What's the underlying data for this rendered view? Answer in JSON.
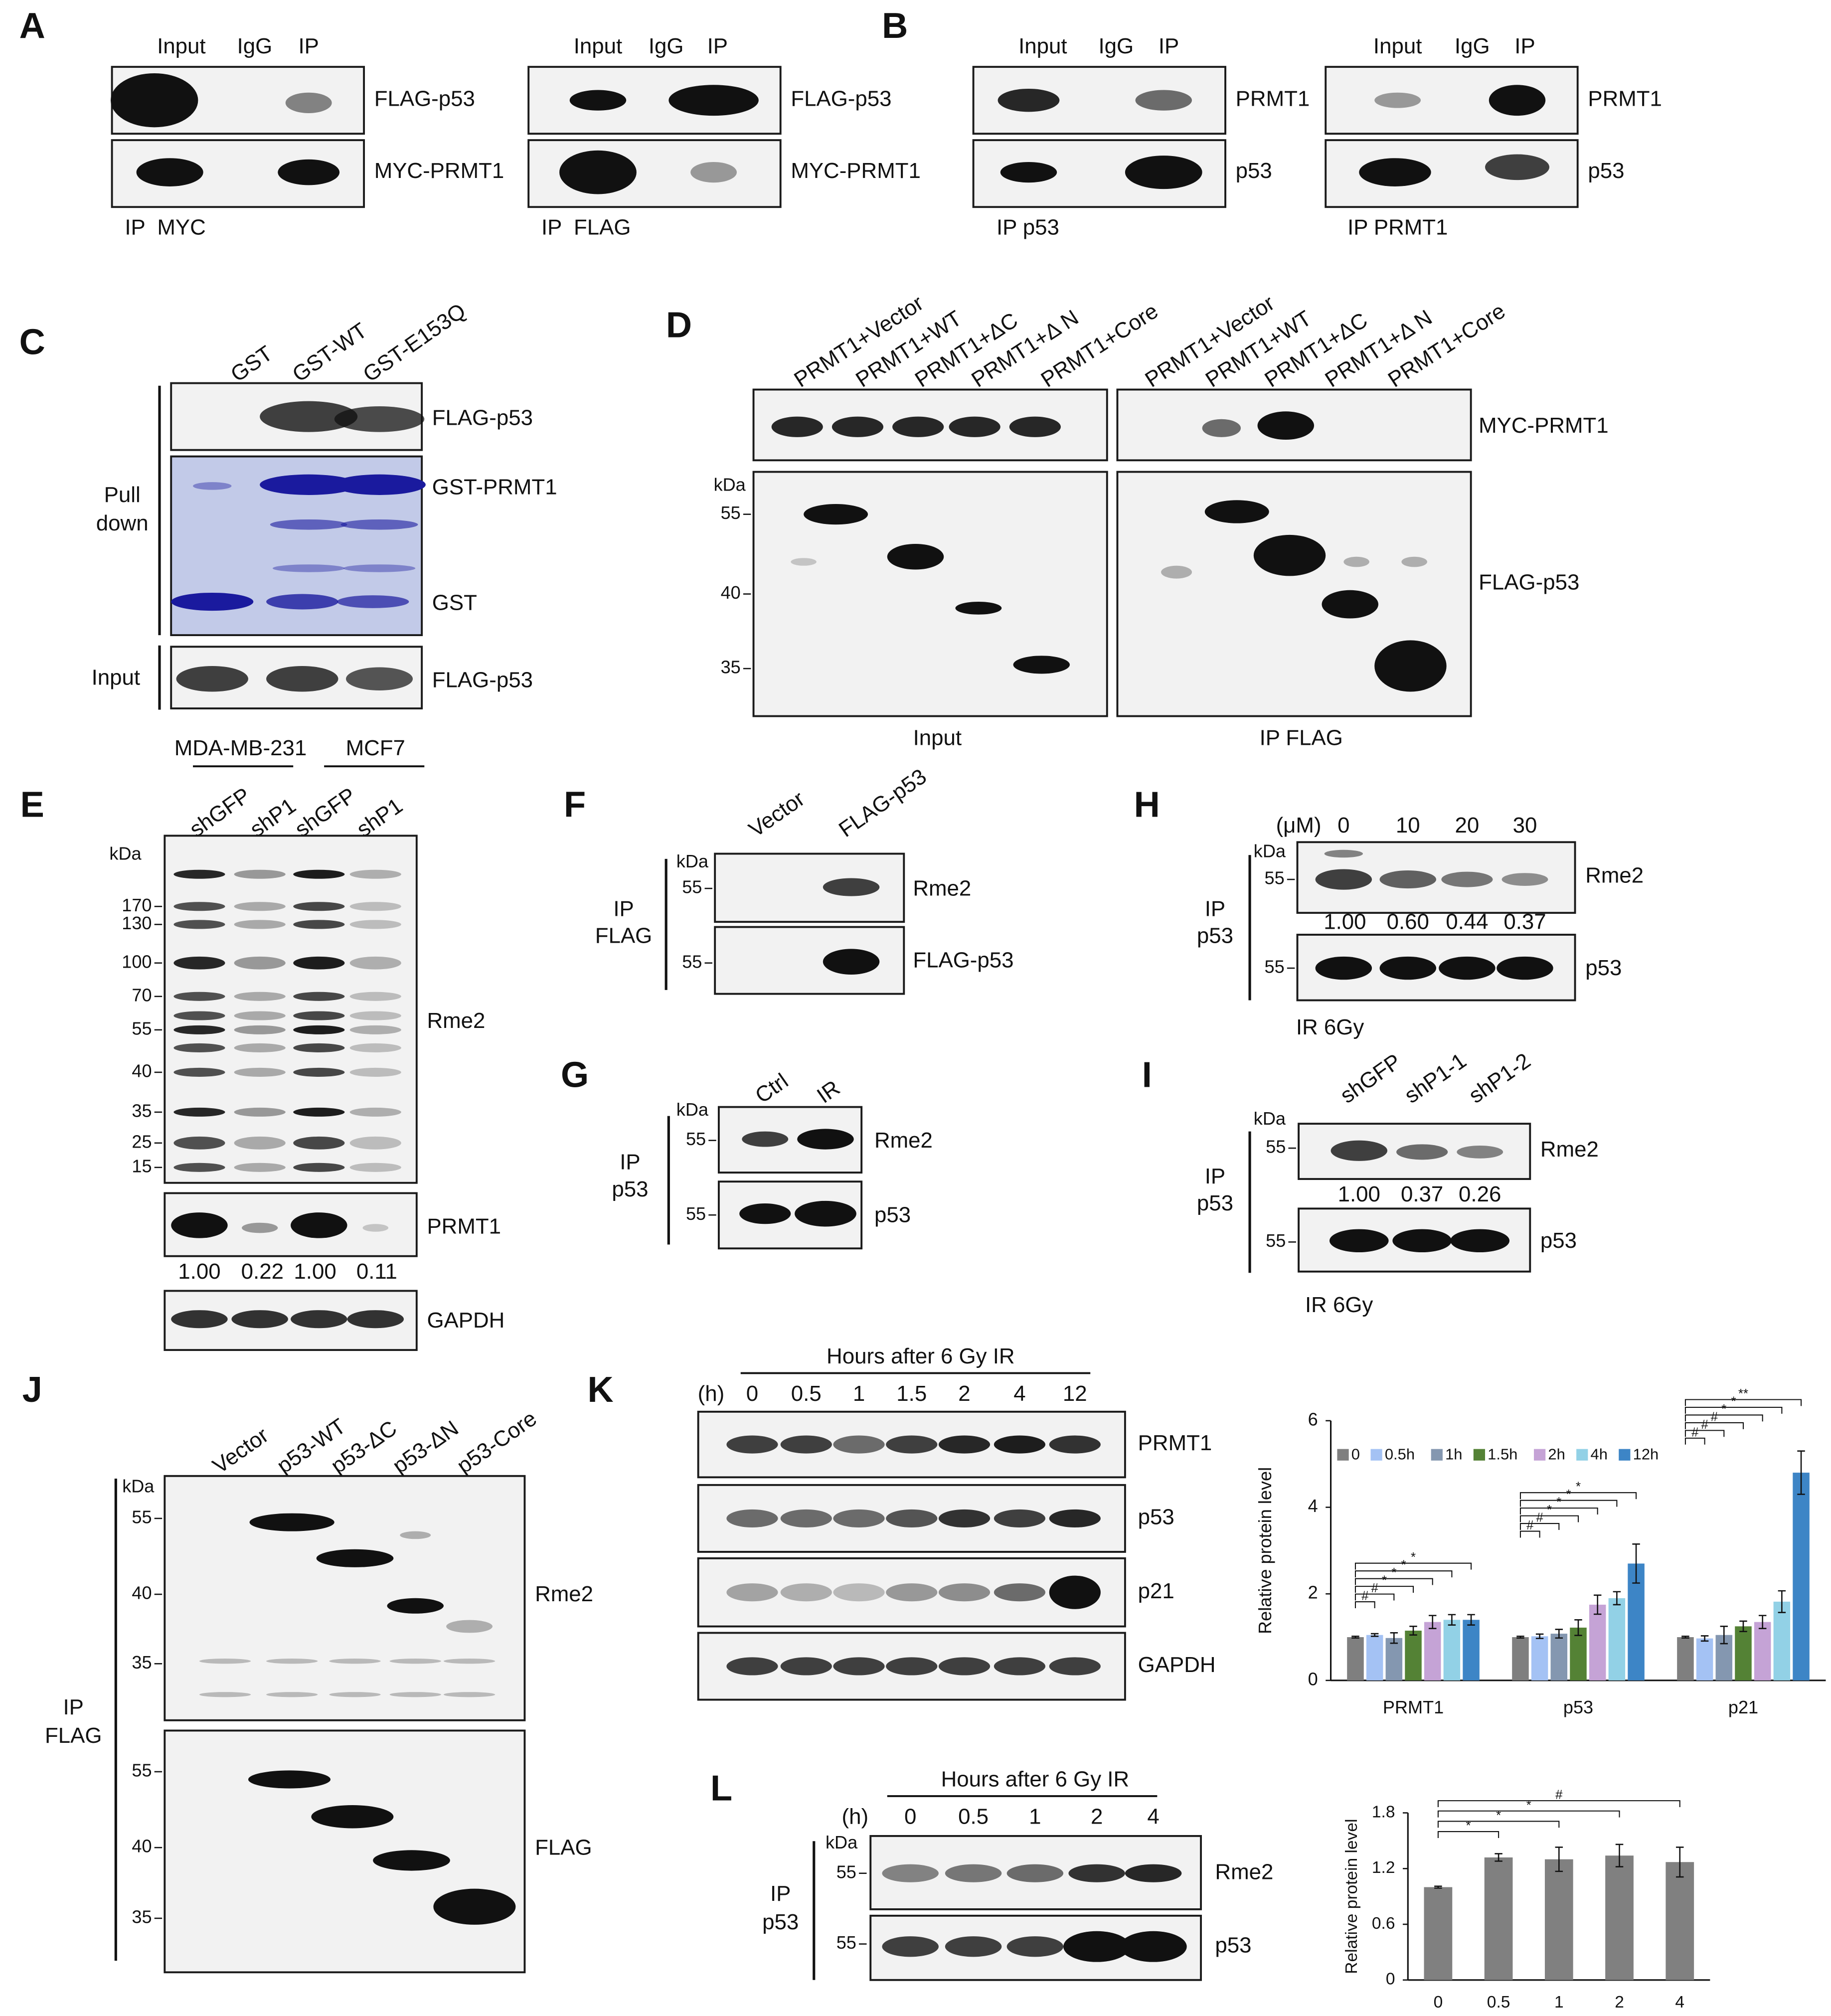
{
  "A": {
    "label": "A",
    "myc": {
      "columns": [
        "Input",
        "IgG",
        "IP"
      ],
      "rows": [
        "FLAG-p53",
        "MYC-PRMT1"
      ],
      "ip": "IP  MYC"
    },
    "flag": {
      "columns": [
        "Input",
        "IgG",
        "IP"
      ],
      "rows": [
        "FLAG-p53",
        "MYC-PRMT1"
      ],
      "ip": "IP  FLAG"
    }
  },
  "B": {
    "label": "B",
    "p53": {
      "columns": [
        "Input",
        "IgG",
        "IP"
      ],
      "rows": [
        "PRMT1",
        "p53"
      ],
      "ip": "IP p53"
    },
    "prmt1": {
      "columns": [
        "Input",
        "IgG",
        "IP"
      ],
      "rows": [
        "PRMT1",
        "p53"
      ],
      "ip": "IP PRMT1"
    }
  },
  "C": {
    "label": "C",
    "lanes": [
      "GST",
      "GST-WT",
      "GST-E153Q"
    ],
    "rows": [
      "FLAG-p53",
      "GST-PRMT1",
      "GST",
      "FLAG-p53"
    ],
    "pull_down": [
      "Pull",
      "down"
    ],
    "input": "Input"
  },
  "D": {
    "label": "D",
    "lanes": [
      "PRMT1+Vector",
      "PRMT1+WT",
      "PRMT1+ΔC",
      "PRMT1+Δ N",
      "PRMT1+Core"
    ],
    "rows": [
      "MYC-PRMT1",
      "FLAG-p53"
    ],
    "kda": "kDa",
    "markers": [
      "55",
      "40",
      "35"
    ],
    "sections": [
      "Input",
      "IP FLAG"
    ]
  },
  "E": {
    "label": "E",
    "cells": [
      "MDA-MB-231",
      "MCF7"
    ],
    "lanes": [
      "shGFP",
      "shP1",
      "shGFP",
      "shP1"
    ],
    "kda": "kDa",
    "markers": [
      "170",
      "130",
      "100",
      "70",
      "55",
      "40",
      "35",
      "25",
      "15"
    ],
    "rows": [
      "Rme2",
      "PRMT1",
      "GAPDH"
    ],
    "quant": [
      "1.00",
      "0.22",
      "1.00",
      "0.11"
    ]
  },
  "F": {
    "label": "F",
    "lanes": [
      "Vector",
      "FLAG-p53"
    ],
    "kda": "kDa",
    "markers": [
      "55",
      "55"
    ],
    "rows": [
      "Rme2",
      "FLAG-p53"
    ],
    "ip": [
      "IP",
      "FLAG"
    ]
  },
  "G": {
    "label": "G",
    "lanes": [
      "Ctrl",
      "IR"
    ],
    "kda": "kDa",
    "markers": [
      "55",
      "55"
    ],
    "rows": [
      "Rme2",
      "p53"
    ],
    "ip": [
      "IP",
      "p53"
    ]
  },
  "H": {
    "label": "H",
    "unit": "(μM)",
    "doses": [
      "0",
      "10",
      "20",
      "30"
    ],
    "kda": "kDa",
    "markers": [
      "55",
      "55"
    ],
    "rows": [
      "Rme2",
      "p53"
    ],
    "quant": [
      "1.00",
      "0.60",
      "0.44",
      "0.37"
    ],
    "ip": [
      "IP",
      "p53"
    ],
    "note": "IR 6Gy"
  },
  "I": {
    "label": "I",
    "lanes": [
      "shGFP",
      "shP1-1",
      "shP1-2"
    ],
    "kda": "kDa",
    "markers": [
      "55",
      "55"
    ],
    "rows": [
      "Rme2",
      "p53"
    ],
    "quant": [
      "1.00",
      "0.37",
      "0.26"
    ],
    "ip": [
      "IP",
      "p53"
    ],
    "note": "IR 6Gy"
  },
  "J": {
    "label": "J",
    "lanes": [
      "Vector",
      "p53-WT",
      "p53-ΔC",
      "p53-ΔN",
      "p53-Core"
    ],
    "kda": "kDa",
    "markers": [
      "55",
      "40",
      "35",
      "55",
      "40",
      "35"
    ],
    "rows": [
      "Rme2",
      "FLAG"
    ],
    "ip": [
      "IP",
      "FLAG"
    ]
  },
  "K": {
    "label": "K",
    "header": "Hours after 6 Gy IR",
    "unit": "(h)",
    "times": [
      "0",
      "0.5",
      "1",
      "1.5",
      "2",
      "4",
      "12"
    ],
    "rows": [
      "PRMT1",
      "p53",
      "p21",
      "GAPDH"
    ]
  },
  "L": {
    "label": "L",
    "header": "Hours after 6 Gy IR",
    "unit": "(h)",
    "times": [
      "0",
      "0.5",
      "1",
      "2",
      "4"
    ],
    "kda": "kDa",
    "markers": [
      "55",
      "55"
    ],
    "rows": [
      "Rme2",
      "p53"
    ],
    "ip": [
      "IP",
      "p53"
    ]
  },
  "chart_data": [
    {
      "type": "bar",
      "ylabel": "Relative protein level",
      "categories": [
        "PRMT1",
        "p53",
        "p21"
      ],
      "series": [
        {
          "name": "0",
          "color": "#7f7f7f",
          "values": [
            1.0,
            1.0,
            1.0
          ],
          "errors": [
            0.02,
            0.02,
            0.02
          ]
        },
        {
          "name": "0.5h",
          "color": "#a4c2f4",
          "values": [
            1.05,
            1.02,
            0.97
          ],
          "errors": [
            0.03,
            0.05,
            0.06
          ]
        },
        {
          "name": "1h",
          "color": "#8497b0",
          "values": [
            0.98,
            1.08,
            1.05
          ],
          "errors": [
            0.12,
            0.1,
            0.2
          ]
        },
        {
          "name": "1.5h",
          "color": "#548235",
          "values": [
            1.15,
            1.22,
            1.25
          ],
          "errors": [
            0.1,
            0.18,
            0.12
          ]
        },
        {
          "name": "2h",
          "color": "#c5a3d6",
          "values": [
            1.35,
            1.75,
            1.35
          ],
          "errors": [
            0.15,
            0.22,
            0.15
          ]
        },
        {
          "name": "4h",
          "color": "#92d1e6",
          "values": [
            1.4,
            1.9,
            1.82
          ],
          "errors": [
            0.12,
            0.15,
            0.25
          ]
        },
        {
          "name": "12h",
          "color": "#3d85c6",
          "values": [
            1.4,
            2.7,
            4.8
          ],
          "errors": [
            0.12,
            0.45,
            0.5
          ]
        }
      ],
      "ylim": [
        0,
        6
      ],
      "yticks": [
        0,
        2,
        4,
        6
      ],
      "legend": "top",
      "significance": [
        [
          "#",
          "#",
          "*",
          "*",
          "*",
          "*"
        ],
        [
          "#",
          "#",
          "*",
          "*",
          "*",
          "*"
        ],
        [
          "#",
          "#",
          "#",
          "*",
          "*",
          "**"
        ]
      ]
    },
    {
      "type": "bar",
      "ylabel": "Relative protein level",
      "categories": [
        "0",
        "0.5",
        "1",
        "2",
        "4"
      ],
      "values": [
        1.0,
        1.32,
        1.3,
        1.34,
        1.27
      ],
      "errors": [
        0.01,
        0.04,
        0.13,
        0.12,
        0.16
      ],
      "color": "#808080",
      "ylim": [
        0,
        1.8
      ],
      "yticks": [
        0,
        0.6,
        1.2,
        1.8
      ],
      "significance": [
        "*",
        "*",
        "*",
        "#"
      ]
    }
  ]
}
